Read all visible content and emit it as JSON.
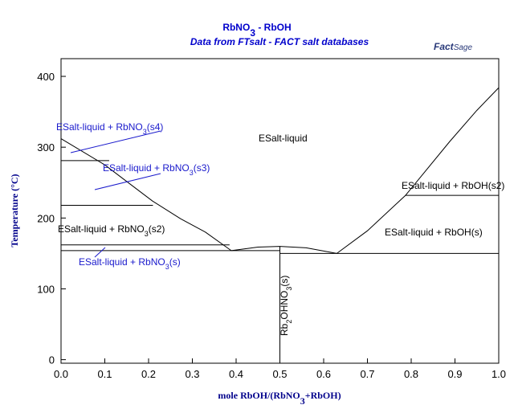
{
  "chart_data": {
    "type": "line",
    "title": [
      "RbNO",
      "3",
      " - RbOH"
    ],
    "subtitle": "Data from FTsalt - FACT salt databases",
    "logo": [
      "Fact",
      "Sage"
    ],
    "x_label": [
      "mole RbOH/(RbNO",
      "3",
      "+RbOH)"
    ],
    "y_label": "Temperature (°C)",
    "xlim": [
      0,
      1
    ],
    "ylim": [
      -5,
      425
    ],
    "xticks": [
      {
        "value": 0,
        "label": "0.0"
      },
      0.1,
      0.2,
      0.3,
      0.4,
      0.5,
      0.6,
      0.7,
      0.8,
      0.9,
      {
        "value": 1,
        "label": "1.0"
      }
    ],
    "yticks": [
      0,
      100,
      200,
      300,
      400
    ],
    "color": "#000000",
    "lines": [
      {
        "x": [
          0,
          0.1,
          0.209,
          0.273,
          0.33,
          0.389
        ],
        "y": [
          312,
          275,
          224,
          199,
          180,
          154
        ]
      },
      {
        "x": [
          0.389,
          0.45,
          0.5,
          0.56,
          0.63
        ],
        "y": [
          154,
          159,
          160,
          158,
          150
        ]
      },
      {
        "x": [
          0.63,
          0.7,
          0.787,
          0.888,
          0.95,
          1.0
        ],
        "y": [
          150,
          182,
          232,
          308,
          352,
          384
        ]
      },
      {
        "x": [
          0,
          0.11
        ],
        "y": [
          281,
          281
        ]
      },
      {
        "x": [
          0,
          0.21
        ],
        "y": [
          218,
          218
        ]
      },
      {
        "x": [
          0,
          0.385
        ],
        "y": [
          162,
          162
        ]
      },
      {
        "x": [
          0,
          0.5
        ],
        "y": [
          154,
          154
        ]
      },
      {
        "x": [
          0.5,
          1.0
        ],
        "y": [
          150,
          150
        ]
      },
      {
        "x": [
          0.787,
          1.0
        ],
        "y": [
          232,
          232
        ]
      },
      {
        "x": [
          0.5,
          0.5
        ],
        "y": [
          0,
          160
        ]
      }
    ],
    "annotations": [
      [
        "ESalt-liquid"
      ],
      [
        "ESalt-liquid + RbNO",
        "3",
        "(s4)"
      ],
      [
        "ESalt-liquid + RbNO",
        "3",
        "(s3)"
      ],
      [
        "ESalt-liquid + RbNO",
        "3",
        "(s2)"
      ],
      [
        "ESalt-liquid + RbNO",
        "3",
        "(s)"
      ],
      [
        "ESalt-liquid + RbOH(s2)"
      ],
      [
        "ESalt-liquid + RbOH(s)"
      ],
      [
        "Rb",
        "2",
        "OHNO",
        "3",
        "(s)"
      ]
    ]
  }
}
